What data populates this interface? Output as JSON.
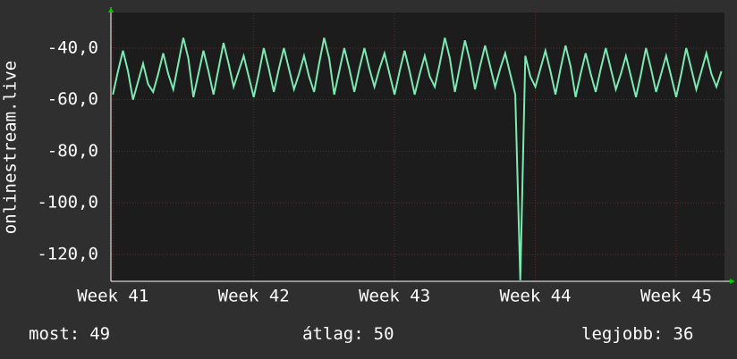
{
  "chart_data": {
    "type": "line",
    "y_label": "onlinestream.live",
    "x": [
      0,
      0.25,
      0.5,
      0.75,
      1,
      1.25,
      1.5,
      1.75,
      2,
      2.25,
      2.5,
      2.75,
      3,
      3.25,
      3.5,
      3.75,
      4,
      4.25,
      4.5,
      4.75,
      5,
      5.25,
      5.5,
      5.75,
      6,
      6.25,
      6.5,
      6.75,
      7,
      7.25,
      7.5,
      7.75,
      8,
      8.25,
      8.5,
      8.75,
      9,
      9.25,
      9.5,
      9.75,
      10,
      10.25,
      10.5,
      10.75,
      11,
      11.25,
      11.5,
      11.75,
      12,
      12.25,
      12.5,
      12.75,
      13,
      13.25,
      13.5,
      13.75,
      14,
      14.25,
      14.5,
      14.75,
      15,
      15.25,
      15.5,
      15.75,
      16,
      16.25,
      16.5,
      16.75,
      17,
      17.25,
      17.5,
      17.75,
      18,
      18.25,
      18.5,
      18.75,
      19,
      19.25,
      19.5,
      19.75,
      20,
      20.25,
      20.5,
      20.75,
      21,
      21.25,
      21.5,
      21.75,
      22,
      22.25,
      22.5,
      22.75,
      23,
      23.25,
      23.5,
      23.75,
      24,
      24.25,
      24.5,
      24.75,
      25,
      25.25,
      25.5,
      25.75,
      26,
      26.25,
      26.5,
      26.75,
      27,
      27.25,
      27.5,
      27.75,
      28,
      28.25,
      28.5,
      28.75,
      29,
      29.25,
      29.5,
      29.75,
      30,
      30.25
    ],
    "series": [
      {
        "name": "onlinestream.live",
        "color": "#7ce8b2",
        "values": [
          -58,
          -49,
          -41,
          -49,
          -60,
          -53,
          -46,
          -54,
          -57,
          -50,
          -42,
          -50,
          -56,
          -46,
          -36,
          -44,
          -59,
          -50,
          -41,
          -49,
          -58,
          -48,
          -38,
          -46,
          -55,
          -49,
          -43,
          -51,
          -59,
          -50,
          -40,
          -48,
          -57,
          -48,
          -40,
          -48,
          -56,
          -50,
          -43,
          -51,
          -57,
          -46,
          -36,
          -44,
          -58,
          -49,
          -40,
          -48,
          -57,
          -48,
          -40,
          -48,
          -55,
          -48,
          -42,
          -50,
          -58,
          -49,
          -41,
          -49,
          -58,
          -50,
          -43,
          -51,
          -55,
          -46,
          -36,
          -44,
          -57,
          -47,
          -37,
          -45,
          -56,
          -47,
          -39,
          -47,
          -55,
          -48,
          -42,
          -50,
          -58,
          -130,
          -43,
          -51,
          -55,
          -48,
          -41,
          -49,
          -58,
          -48,
          -39,
          -47,
          -59,
          -50,
          -42,
          -50,
          -57,
          -48,
          -40,
          -48,
          -56,
          -50,
          -43,
          -51,
          -59,
          -50,
          -40,
          -48,
          -57,
          -50,
          -43,
          -51,
          -59,
          -50,
          -40,
          -48,
          -56,
          -49,
          -42,
          -50,
          -55,
          -49
        ]
      }
    ],
    "xlim": [
      -0.1,
      30.4
    ],
    "xticks": [
      {
        "value": 0,
        "label": "Week 41"
      },
      {
        "value": 7,
        "label": "Week 42"
      },
      {
        "value": 14,
        "label": "Week 43"
      },
      {
        "value": 21,
        "label": "Week 44"
      },
      {
        "value": 28,
        "label": "Week 45"
      }
    ],
    "ylim": [
      -130.4,
      -26.2
    ],
    "yticks": [
      {
        "value": -40,
        "label": "-40,0"
      },
      {
        "value": -60,
        "label": "-60,0"
      },
      {
        "value": -80,
        "label": "-80,0"
      },
      {
        "value": -100,
        "label": "-100,0"
      },
      {
        "value": -120,
        "label": "-120,0"
      }
    ],
    "grid": true,
    "stats": [
      {
        "label": "most:",
        "value": 49
      },
      {
        "label": "átlag:",
        "value": 50
      },
      {
        "label": "legjobb:",
        "value": 36
      }
    ]
  }
}
